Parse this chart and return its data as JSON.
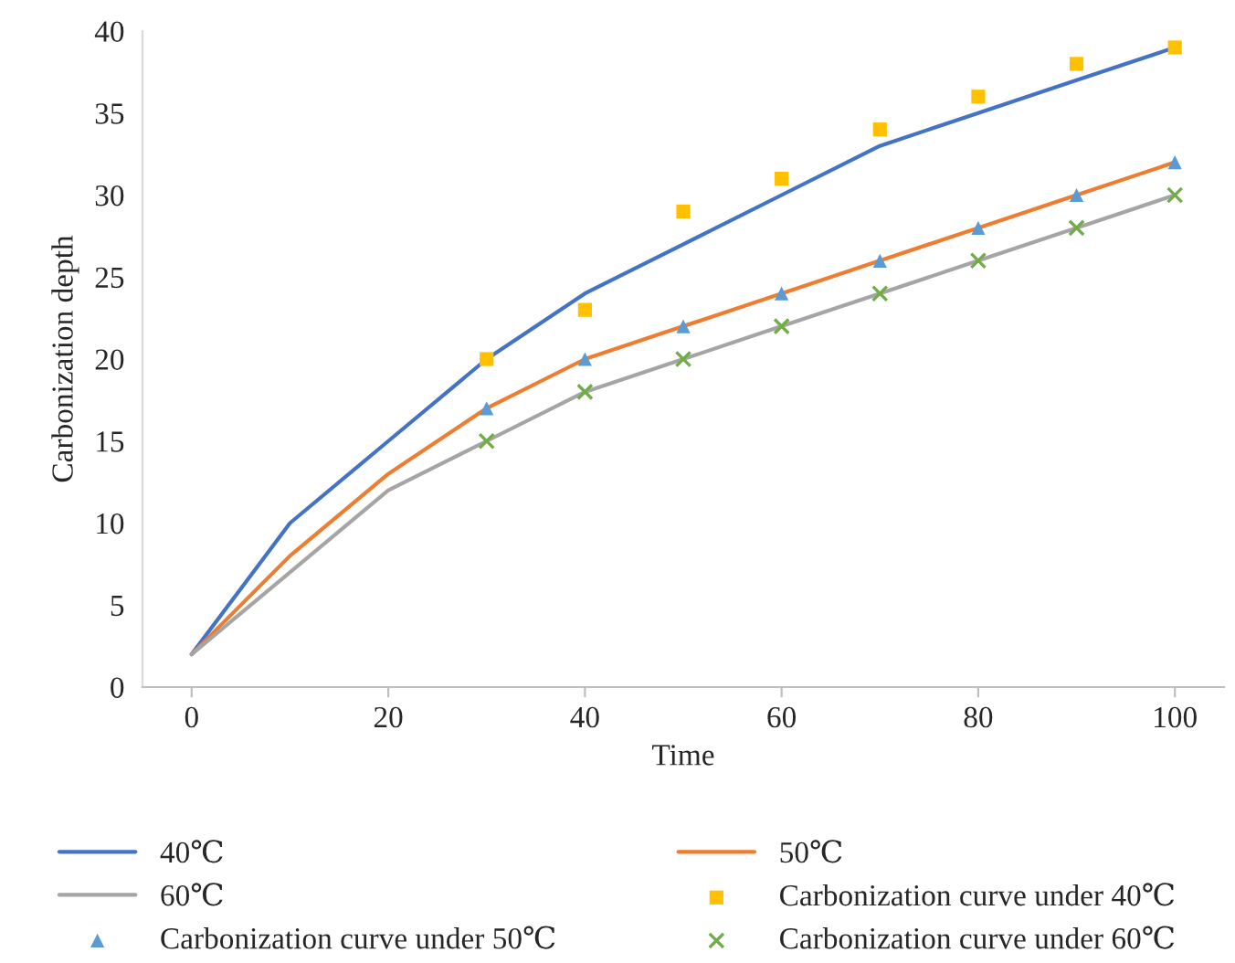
{
  "chart_data": {
    "type": "line",
    "xlabel": "Time",
    "ylabel": "Carbonization depth",
    "xlim": [
      -5,
      105
    ],
    "xticks": [
      0,
      20,
      40,
      60,
      80,
      100
    ],
    "ylim": [
      0,
      40
    ],
    "yticks": [
      0,
      5,
      10,
      15,
      20,
      25,
      30,
      35,
      40
    ],
    "grid": false,
    "legend": "bottom",
    "series": [
      {
        "name": "40℃",
        "color": "#4472c4",
        "marker": "none",
        "x": [
          0,
          10,
          20,
          30,
          40,
          50,
          60,
          70,
          80,
          90,
          100
        ],
        "values": [
          2,
          10,
          15,
          20,
          24,
          27,
          30,
          33,
          35,
          37,
          39
        ]
      },
      {
        "name": "50℃",
        "color": "#ed7d31",
        "marker": "none",
        "x": [
          0,
          10,
          20,
          30,
          40,
          50,
          60,
          70,
          80,
          90,
          100
        ],
        "values": [
          2,
          8,
          13,
          17,
          20,
          22,
          24,
          26,
          28,
          30,
          32
        ]
      },
      {
        "name": "60℃",
        "color": "#a5a5a5",
        "marker": "none",
        "x": [
          0,
          10,
          20,
          30,
          40,
          50,
          60,
          70,
          80,
          90,
          100
        ],
        "values": [
          2,
          7,
          12,
          15,
          18,
          20,
          22,
          24,
          26,
          28,
          30
        ]
      },
      {
        "name": "Carbonization curve under 40℃",
        "type": "scatter",
        "color": "#ffc000",
        "marker": "square",
        "x": [
          30,
          40,
          50,
          60,
          70,
          80,
          90,
          100
        ],
        "values": [
          20,
          23,
          29,
          31,
          34,
          36,
          38,
          39
        ]
      },
      {
        "name": "Carbonization curve under 50℃",
        "type": "scatter",
        "color": "#5b9bd5",
        "marker": "triangle",
        "x": [
          30,
          40,
          50,
          60,
          70,
          80,
          90,
          100
        ],
        "values": [
          17,
          20,
          22,
          24,
          26,
          28,
          30,
          32
        ]
      },
      {
        "name": "Carbonization curve under 60℃",
        "type": "scatter",
        "color": "#70ad47",
        "marker": "cross",
        "x": [
          30,
          40,
          50,
          60,
          70,
          80,
          90,
          100
        ],
        "values": [
          15,
          18,
          20,
          22,
          24,
          26,
          28,
          30
        ]
      }
    ]
  }
}
